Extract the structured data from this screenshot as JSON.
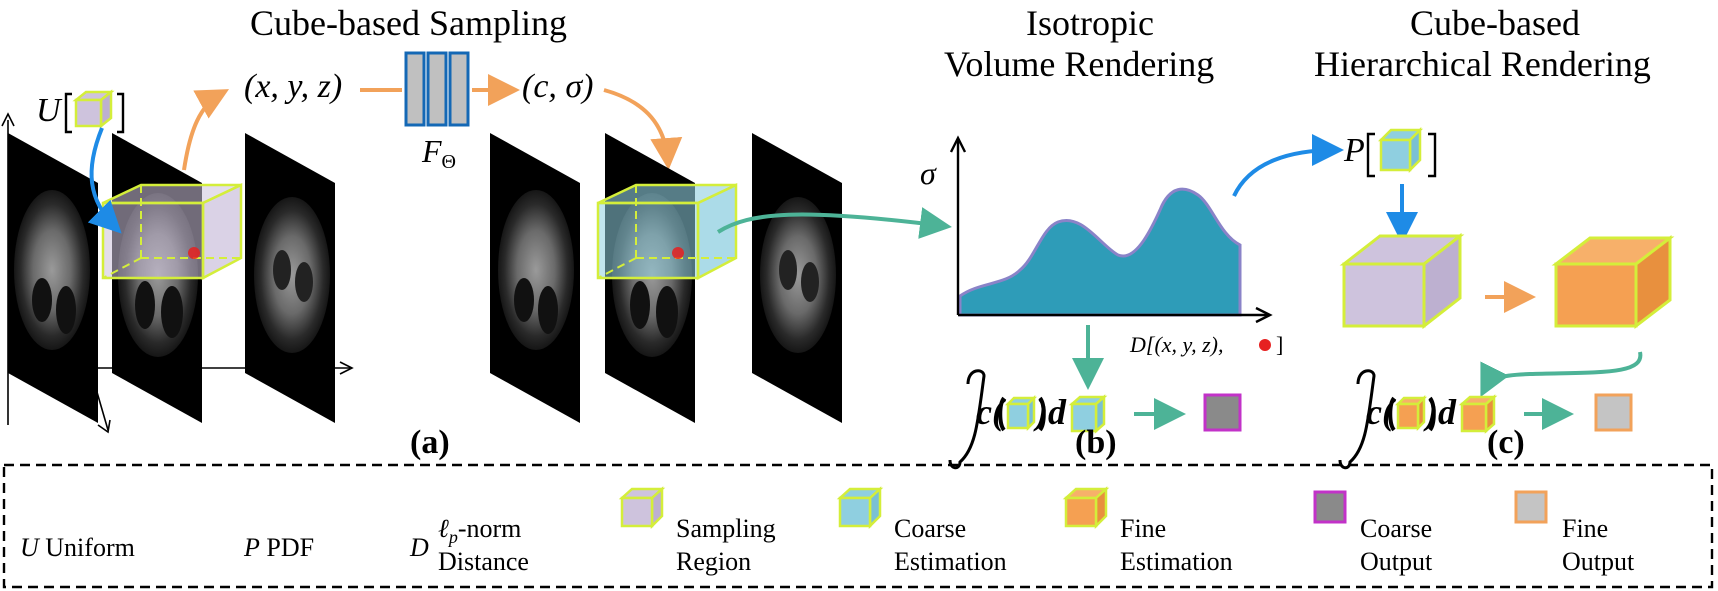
{
  "titles": {
    "sampling": "Cube-based Sampling",
    "isotropic_1": "Isotropic",
    "isotropic_2": "Volume Rendering",
    "hier_1": "Cube-based",
    "hier_2": "Hierarchical Rendering"
  },
  "math": {
    "U": "U",
    "xyz": "(x, y, z)",
    "c_sigma": "(c, σ)",
    "F": "F",
    "theta": "Θ",
    "sigma": "σ",
    "P": "P",
    "D_axis": "D[(x, y, z),",
    "D_close": "]",
    "c1": "c(",
    "d1": ")d",
    "c2": "c(",
    "d2": ")d"
  },
  "panels": {
    "a": "(a)",
    "b": "(b)",
    "c": "(c)"
  },
  "legend": {
    "U_sym": "U",
    "U_label": "Uniform",
    "P_sym": "P",
    "P_label": "PDF",
    "D_sym": "D",
    "D_label_1": "ℓ",
    "D_label_sub": "p",
    "D_label_2": "-norm",
    "D_label_3": "Distance",
    "sampling_1": "Sampling",
    "sampling_2": "Region",
    "coarse_est_1": "Coarse",
    "coarse_est_2": "Estimation",
    "fine_est_1": "Fine",
    "fine_est_2": "Estimation",
    "coarse_out_1": "Coarse",
    "coarse_out_2": "Output",
    "fine_out_1": "Fine",
    "fine_out_2": "Output"
  },
  "colors": {
    "orange_arrow": "#F2A25A",
    "blue_arrow": "#1E8BE6",
    "teal_arrow": "#4DB397",
    "cube_edge": "#D4EE3A",
    "sampling_fill": "#CEC3DD",
    "coarse_fill": "#8FCFE0",
    "fine_fill": "#F5A052",
    "curve_fill": "#2E9CB8",
    "curve_edge": "#8A83C8",
    "network_fill": "#C0C0C0",
    "network_edge": "#1468B5",
    "coarse_out_fill": "#8A8A8A",
    "coarse_out_edge": "#C232C8",
    "fine_out_fill": "#C4C4C4",
    "fine_out_edge": "#F2A25A",
    "red_point": "#E62020"
  }
}
